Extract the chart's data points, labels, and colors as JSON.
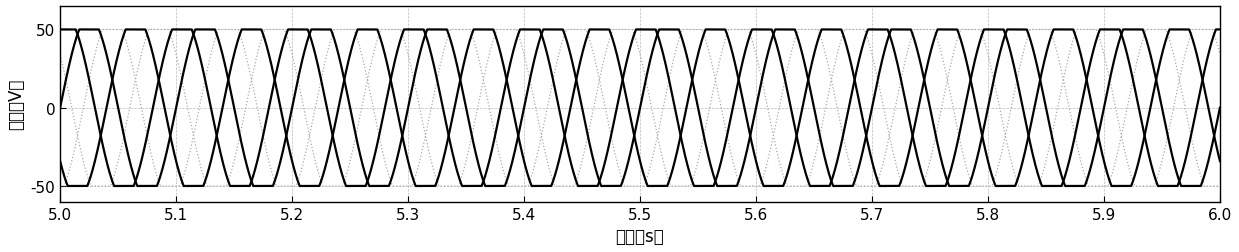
{
  "xlim": [
    5.0,
    6.0
  ],
  "ylim": [
    -60,
    65
  ],
  "yticks": [
    -50,
    0,
    50
  ],
  "xticks": [
    5.0,
    5.1,
    5.2,
    5.3,
    5.4,
    5.5,
    5.6,
    5.7,
    5.8,
    5.9,
    6.0
  ],
  "xlabel": "时间（s）",
  "ylabel": "电压（V）",
  "amplitude": 58,
  "clip_level": 50,
  "frequency": 10,
  "t_start": 5.0,
  "t_end": 6.0,
  "num_phases": 5,
  "phase_offsets_deg": [
    0,
    72,
    144,
    216,
    288
  ],
  "line_color_solid": "#000000",
  "line_color_dot": "#aaaaaa",
  "background_color": "#ffffff",
  "lw_solid": 1.6,
  "lw_dot": 0.9,
  "figsize": [
    12.39,
    2.53
  ],
  "dpi": 100
}
